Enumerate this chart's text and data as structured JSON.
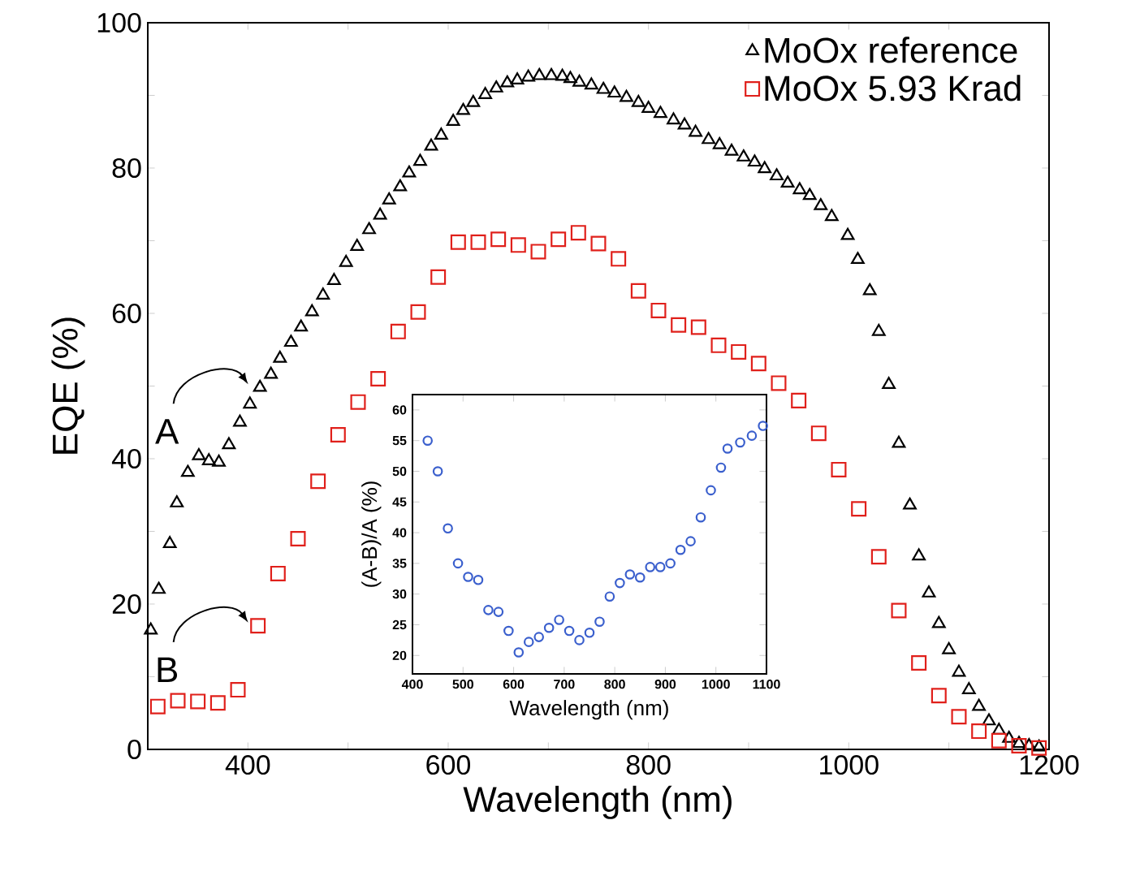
{
  "chart_data": [
    {
      "type": "scatter",
      "xlabel": "Wavelength (nm)",
      "ylabel": "EQE (%)",
      "xlim": [
        300,
        1200
      ],
      "ylim": [
        0,
        100
      ],
      "xticks": [
        400,
        {
          "value": 500,
          "label": null
        },
        600,
        {
          "value": 700,
          "label": null
        },
        800,
        {
          "value": 900,
          "label": null
        },
        1000,
        {
          "value": 1100,
          "label": null
        },
        1200
      ],
      "yticks": [
        0,
        {
          "value": 10,
          "label": null
        },
        20,
        {
          "value": 30,
          "label": null
        },
        40,
        {
          "value": 50,
          "label": null
        },
        60,
        {
          "value": 70,
          "label": null
        },
        80,
        {
          "value": 90,
          "label": null
        },
        100
      ],
      "legend": "top right",
      "grid": false,
      "annotations": [
        {
          "text": "A",
          "x": 410,
          "y": 49.8
        },
        {
          "text": "B",
          "x": 410,
          "y": 17
        }
      ],
      "series": [
        {
          "name": "MoOx reference",
          "color": "#000000",
          "marker": "triangle",
          "x": [
            303,
            311,
            322,
            329,
            340,
            351,
            361,
            371,
            381,
            392,
            402,
            412,
            423,
            432,
            443,
            453,
            464,
            475,
            486,
            498,
            509,
            521,
            532,
            541,
            552,
            561,
            572,
            583,
            593,
            605,
            615,
            625,
            637,
            648,
            659,
            669,
            680,
            691,
            703,
            714,
            722,
            731,
            743,
            755,
            766,
            778,
            790,
            800,
            812,
            825,
            836,
            847,
            860,
            871,
            883,
            895,
            906,
            916,
            928,
            939,
            951,
            961,
            972,
            983,
            999,
            1009,
            1021,
            1030,
            1040,
            1050,
            1061,
            1070,
            1080,
            1090,
            1100,
            1110,
            1120,
            1130,
            1140,
            1150,
            1160,
            1170,
            1180,
            1190
          ],
          "values": [
            16.4,
            22,
            28.3,
            33.9,
            38.1,
            40.4,
            39.7,
            39.5,
            41.9,
            45,
            47.5,
            49.8,
            51.6,
            53.8,
            56.0,
            58.1,
            60.2,
            62.5,
            64.5,
            67.0,
            69.2,
            71.5,
            73.5,
            75.6,
            77.4,
            79.3,
            80.9,
            83.0,
            84.5,
            86.4,
            87.9,
            89.0,
            90.1,
            91.0,
            91.7,
            92.1,
            92.5,
            92.7,
            92.7,
            92.6,
            92.3,
            91.8,
            91.4,
            90.8,
            90.3,
            89.7,
            89.0,
            88.2,
            87.5,
            86.6,
            85.9,
            84.9,
            83.9,
            83.2,
            82.3,
            81.5,
            80.8,
            79.9,
            78.9,
            77.9,
            77.0,
            76.2,
            74.8,
            73.3,
            70.7,
            67.4,
            63.1,
            57.5,
            50.2,
            42.1,
            33.6,
            26.6,
            21.5,
            17.3,
            13.7,
            10.6,
            8.2,
            5.9,
            3.9,
            2.6,
            1.5,
            0.8,
            0.5,
            0.3
          ]
        },
        {
          "name": "MoOx 5.93 Krad",
          "color": "#e0201b",
          "marker": "square",
          "x": [
            310,
            330,
            350,
            370,
            390,
            410,
            430,
            450,
            470,
            490,
            510,
            530,
            550,
            570,
            590,
            610,
            630,
            650,
            670,
            690,
            710,
            730,
            750,
            770,
            790,
            810,
            830,
            850,
            870,
            890,
            910,
            930,
            950,
            970,
            990,
            1010,
            1030,
            1050,
            1070,
            1090,
            1110,
            1130,
            1150,
            1170,
            1190
          ],
          "values": [
            5.9,
            6.7,
            6.6,
            6.4,
            8.2,
            17.0,
            24.2,
            29.0,
            36.9,
            43.3,
            47.8,
            51.0,
            57.5,
            60.2,
            65.0,
            69.8,
            69.8,
            70.2,
            69.4,
            68.5,
            70.2,
            71.1,
            69.6,
            67.5,
            63.1,
            60.4,
            58.4,
            58.1,
            55.6,
            54.7,
            53.1,
            50.4,
            48.0,
            43.5,
            38.5,
            33.1,
            26.5,
            19.1,
            11.9,
            7.4,
            4.5,
            2.5,
            1.2,
            0.5,
            0.2
          ]
        }
      ]
    },
    {
      "type": "scatter",
      "xlabel": "Wavelength (nm)",
      "ylabel": "(A-B)/A (%)",
      "xlim": [
        400,
        1100
      ],
      "ylim": [
        17,
        62.5
      ],
      "xticks": [
        400,
        500,
        600,
        700,
        800,
        900,
        1000,
        1100
      ],
      "yticks": [
        20,
        25,
        30,
        35,
        40,
        45,
        50,
        55,
        60
      ],
      "grid": false,
      "series": [
        {
          "color": "#3a5fcd",
          "marker": "circle",
          "x": [
            430,
            450,
            470,
            490,
            510,
            530,
            550,
            570,
            590,
            610,
            630,
            650,
            670,
            690,
            710,
            730,
            750,
            770,
            790,
            810,
            830,
            850,
            870,
            890,
            910,
            930,
            950,
            970,
            990,
            1010,
            1023,
            1048,
            1071,
            1093
          ],
          "values": [
            55,
            50,
            40.7,
            35,
            32.8,
            32.3,
            27.4,
            27.1,
            24,
            20.5,
            22.2,
            23,
            24.5,
            25.8,
            24,
            22.5,
            23.7,
            25.5,
            29.6,
            31.8,
            33.2,
            32.7,
            34.4,
            34.4,
            35,
            37.2,
            38.6,
            42.5,
            46.9,
            50.6,
            53.7,
            54.7,
            55.8,
            57.4
          ]
        }
      ]
    }
  ]
}
